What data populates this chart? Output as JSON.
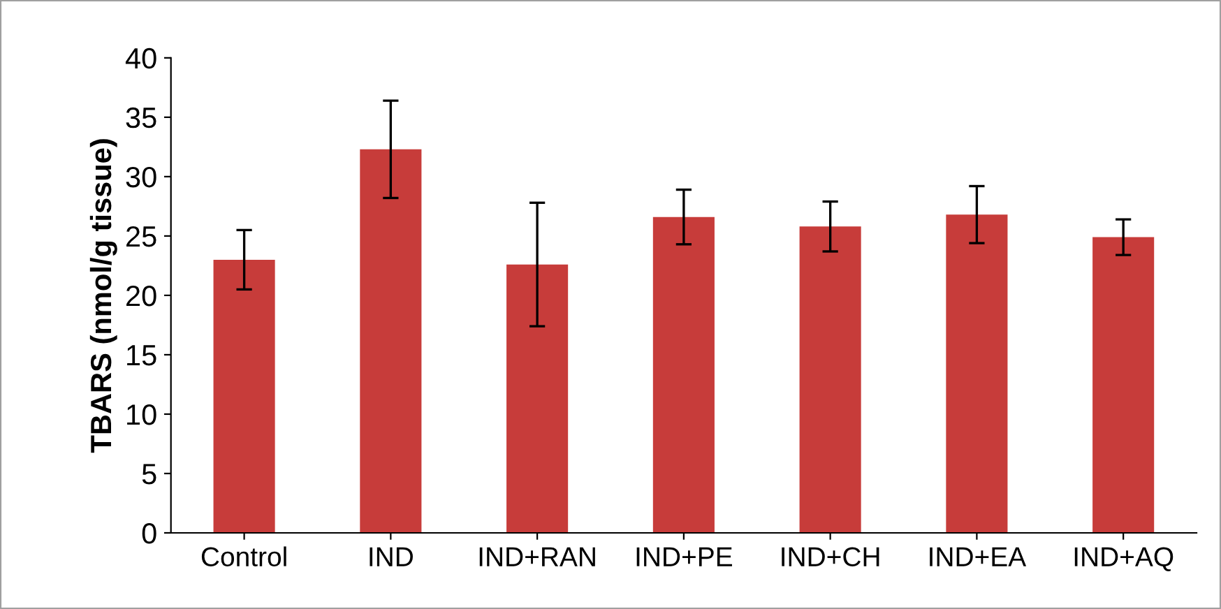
{
  "chart_data": {
    "type": "bar",
    "ylabel": "TBARS (nmol/g tissue)",
    "categories": [
      "Control",
      "IND",
      "IND+RAN",
      "IND+PE",
      "IND+CH",
      "IND+EA",
      "IND+AQ"
    ],
    "values": [
      23.0,
      32.3,
      22.6,
      26.6,
      25.8,
      26.8,
      24.9
    ],
    "errors": [
      2.5,
      4.1,
      5.2,
      2.3,
      2.1,
      2.4,
      1.5
    ],
    "color": "#c73c3a",
    "ylim": [
      0,
      40
    ],
    "yticks": [
      0,
      5,
      10,
      15,
      20,
      25,
      30,
      35,
      40
    ],
    "grid": false
  }
}
